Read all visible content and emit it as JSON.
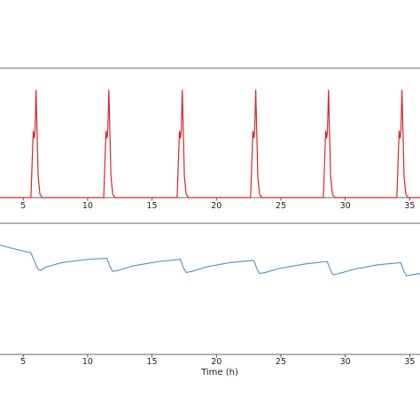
{
  "chart_data": [
    {
      "type": "line",
      "xlabel": "",
      "xlim": [
        3.2,
        35.8
      ],
      "ylim": [
        0,
        1.2
      ],
      "x_ticks": [
        5,
        10,
        15,
        20,
        25,
        30,
        35
      ],
      "x_tick_labels": [
        "5",
        "10",
        "15",
        "20",
        "25",
        "30",
        "35"
      ],
      "grid": false,
      "series": [
        {
          "color": "#d62728",
          "x": [
            3.2,
            5.6,
            5.78,
            5.86,
            5.92,
            6.0,
            6.08,
            6.16,
            6.3,
            6.5,
            11.25,
            11.43,
            11.51,
            11.57,
            11.65,
            11.73,
            11.81,
            11.95,
            12.15,
            16.95,
            17.13,
            17.21,
            17.27,
            17.35,
            17.43,
            17.51,
            17.65,
            17.85,
            22.65,
            22.83,
            22.91,
            22.97,
            23.05,
            23.13,
            23.21,
            23.35,
            23.55,
            28.3,
            28.48,
            28.56,
            28.62,
            28.7,
            28.78,
            28.86,
            29.0,
            29.2,
            34.0,
            34.18,
            34.26,
            34.32,
            34.4,
            34.48,
            34.56,
            34.7,
            34.9,
            35.8
          ],
          "y": [
            0.0,
            0.0,
            0.62,
            0.55,
            0.62,
            1.0,
            0.6,
            0.2,
            0.03,
            0.0,
            0.0,
            0.62,
            0.55,
            0.62,
            1.0,
            0.6,
            0.2,
            0.03,
            0.0,
            0.0,
            0.62,
            0.55,
            0.62,
            1.0,
            0.6,
            0.2,
            0.03,
            0.0,
            0.0,
            0.62,
            0.55,
            0.62,
            1.0,
            0.6,
            0.2,
            0.03,
            0.0,
            0.0,
            0.62,
            0.55,
            0.62,
            1.0,
            0.6,
            0.2,
            0.03,
            0.0,
            0.0,
            0.62,
            0.55,
            0.62,
            1.0,
            0.6,
            0.2,
            0.03,
            0.0,
            0.0
          ]
        }
      ]
    },
    {
      "type": "line",
      "xlabel": "Time (h)",
      "xlim": [
        3.2,
        35.8
      ],
      "ylim": [
        0,
        1.2
      ],
      "x_ticks": [
        5,
        10,
        15,
        20,
        25,
        30,
        35
      ],
      "x_tick_labels": [
        "5",
        "10",
        "15",
        "20",
        "25",
        "30",
        "35"
      ],
      "grid": false,
      "series": [
        {
          "color": "#5b9bc6",
          "x": [
            3.2,
            4.5,
            5.6,
            5.95,
            6.15,
            6.35,
            6.8,
            8.0,
            10.0,
            11.5,
            11.75,
            11.95,
            12.4,
            13.5,
            15.5,
            17.2,
            17.45,
            17.65,
            18.1,
            19.2,
            21.0,
            22.9,
            23.15,
            23.35,
            23.8,
            25.0,
            27.0,
            28.6,
            28.85,
            29.05,
            29.5,
            30.7,
            32.5,
            34.3,
            34.55,
            34.75,
            35.2,
            35.8
          ],
          "y": [
            1.0,
            0.96,
            0.93,
            0.83,
            0.78,
            0.77,
            0.8,
            0.84,
            0.87,
            0.88,
            0.8,
            0.76,
            0.77,
            0.81,
            0.85,
            0.87,
            0.79,
            0.75,
            0.76,
            0.8,
            0.84,
            0.86,
            0.78,
            0.74,
            0.75,
            0.79,
            0.83,
            0.85,
            0.77,
            0.73,
            0.74,
            0.78,
            0.82,
            0.84,
            0.76,
            0.72,
            0.73,
            0.74
          ]
        }
      ]
    }
  ]
}
